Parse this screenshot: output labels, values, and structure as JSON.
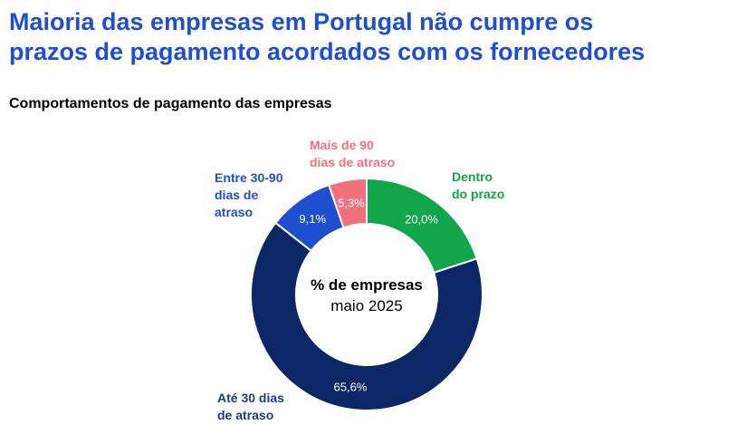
{
  "title_lines": [
    "Maioria das empresas em Portugal não cumpre os",
    "prazos de pagamento acordados com os fornecedores"
  ],
  "subtitle": "Comportamentos de pagamento das empresas",
  "center": {
    "line1": "% de empresas",
    "line2": "maio 2025"
  },
  "chart_data": {
    "type": "pie",
    "title": "Comportamentos de pagamento das empresas",
    "unit": "%",
    "slices": [
      {
        "name": "Dentro do prazo",
        "value": 20.0,
        "value_label": "20,0%",
        "color": "#12a64b",
        "label_lines": [
          "Dentro",
          "do prazo"
        ],
        "label_color": "#12a64b"
      },
      {
        "name": "Até 30 dias de atraso",
        "value": 65.6,
        "value_label": "65,6%",
        "color": "#0b2766",
        "label_lines": [
          "Até 30 dias",
          "de atraso"
        ],
        "label_color": "#1b3a8a"
      },
      {
        "name": "Entre 30-90 dias de atraso",
        "value": 9.1,
        "value_label": "9,1%",
        "color": "#1f4fd1",
        "label_lines": [
          "Entre 30-90",
          "dias de",
          "atraso"
        ],
        "label_color": "#1f4fd1"
      },
      {
        "name": "Mais de 90 dias de atraso",
        "value": 5.3,
        "value_label": "5,3%",
        "color": "#f0707e",
        "label_lines": [
          "Mais de 90",
          "dias de atraso"
        ],
        "label_color": "#f0707e"
      }
    ]
  }
}
